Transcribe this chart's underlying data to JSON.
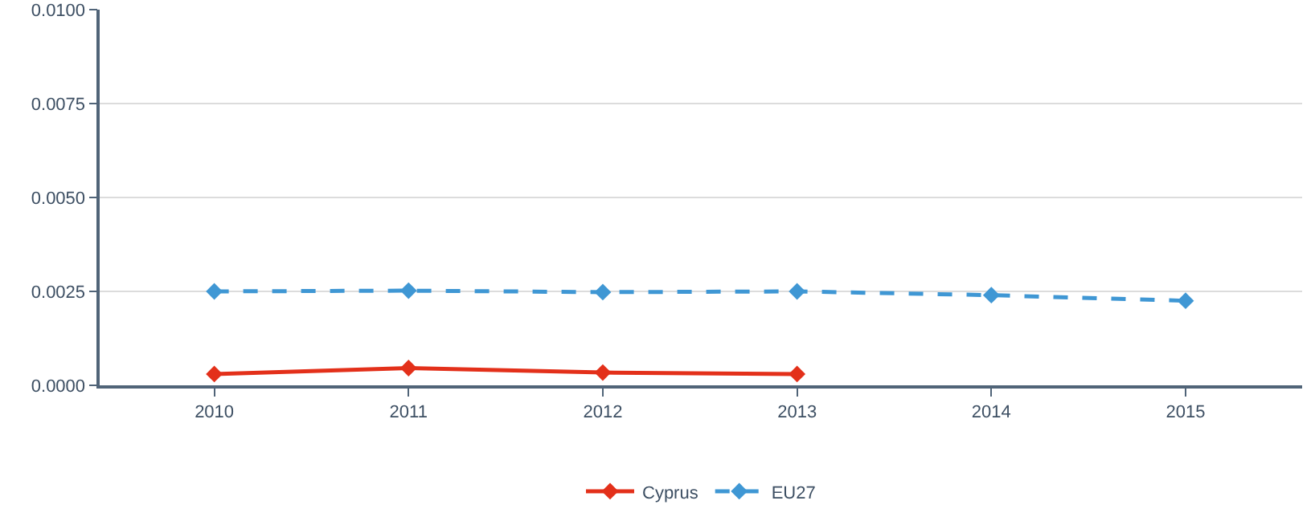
{
  "chart_data": {
    "type": "line",
    "x": [
      2010,
      2011,
      2012,
      2013,
      2014,
      2015
    ],
    "xlim": [
      2009.41,
      2015.6
    ],
    "xticks": [
      2010,
      2011,
      2012,
      2013,
      2014,
      2015
    ],
    "ylim": [
      0,
      0.01
    ],
    "yticks": [
      {
        "value": 0,
        "label": "0.0000"
      },
      {
        "value": 0.0025,
        "label": "0.0025"
      },
      {
        "value": 0.005,
        "label": "0.0050"
      },
      {
        "value": 0.0075,
        "label": "0.0075"
      },
      {
        "value": 0.01,
        "label": "0.0100"
      }
    ],
    "grid": "y",
    "legend": "bottom",
    "marker": "diamond",
    "series": [
      {
        "name": "Cyprus",
        "color": "#e3301a",
        "line_style": "solid",
        "values": [
          0.0003,
          0.00046,
          0.00034,
          0.0003,
          null,
          null
        ]
      },
      {
        "name": "EU27",
        "color": "#3f97d4",
        "line_style": "dashed",
        "values": [
          0.0025,
          0.00252,
          0.00248,
          0.0025,
          0.0024,
          0.00225
        ]
      }
    ]
  }
}
